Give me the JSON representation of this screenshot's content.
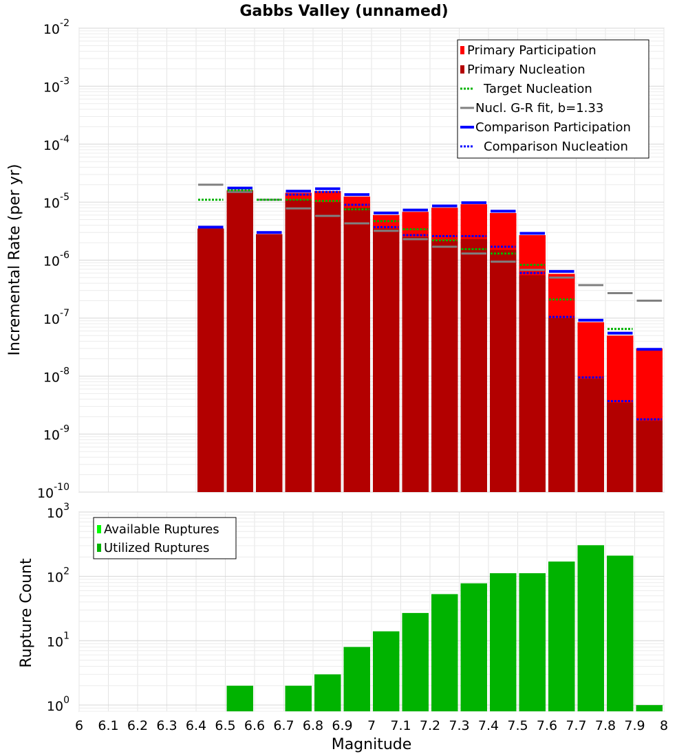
{
  "chart_data": [
    {
      "type": "bar",
      "title": "Gabbs Valley (unnamed)",
      "xlabel": "",
      "ylabel": "Incremental Rate (per yr)",
      "yscale": "log",
      "xlim": [
        6,
        8
      ],
      "ylim": [
        1e-10,
        0.01
      ],
      "y_ticks": [
        {
          "base": "10",
          "exp": "-10",
          "value": 1e-10
        },
        {
          "base": "10",
          "exp": "-9",
          "value": 1e-09
        },
        {
          "base": "10",
          "exp": "-8",
          "value": 1e-08
        },
        {
          "base": "10",
          "exp": "-7",
          "value": 1e-07
        },
        {
          "base": "10",
          "exp": "-6",
          "value": 1e-06
        },
        {
          "base": "10",
          "exp": "-5",
          "value": 1e-05
        },
        {
          "base": "10",
          "exp": "-4",
          "value": 0.0001
        },
        {
          "base": "10",
          "exp": "-3",
          "value": 0.001
        },
        {
          "base": "10",
          "exp": "-2",
          "value": 0.01
        }
      ],
      "legend": [
        {
          "label": "Primary Participation",
          "style": "square",
          "color": "#ff0000"
        },
        {
          "label": "Primary Nucleation",
          "style": "square",
          "color": "#b30000"
        },
        {
          "label": "Target Nucleation",
          "style": "dotted",
          "color": "#00b300"
        },
        {
          "label": "Nucl. G-R fit, b=1.33",
          "style": "solid",
          "color": "#808080"
        },
        {
          "label": "Comparison Participation",
          "style": "solid-thick",
          "color": "#0000ff"
        },
        {
          "label": "Comparison Nucleation",
          "style": "dotted",
          "color": "#0000ff"
        }
      ],
      "x": [
        6.45,
        6.55,
        6.65,
        6.75,
        6.85,
        6.95,
        7.05,
        7.15,
        7.25,
        7.35,
        7.45,
        7.55,
        7.65,
        7.75,
        7.85,
        7.95
      ],
      "series": [
        {
          "name": "Primary Participation",
          "color": "#ff0000",
          "values": [
            3.5e-06,
            1.6e-05,
            2.8e-06,
            1.45e-05,
            1.55e-05,
            1.25e-05,
            6e-06,
            6.8e-06,
            8e-06,
            9.2e-06,
            6.5e-06,
            2.7e-06,
            5.8e-07,
            8.5e-08,
            5e-08,
            3e-08
          ]
        },
        {
          "name": "Primary Nucleation",
          "color": "#b30000",
          "values": [
            3.5e-06,
            1.6e-05,
            2.8e-06,
            1.1e-05,
            1e-05,
            8e-06,
            3.5e-06,
            2.5e-06,
            2.2e-06,
            2.3e-06,
            1.5e-06,
            5.5e-07,
            1e-07,
            9e-09,
            3.5e-09,
            1.7e-09
          ]
        },
        {
          "name": "Target Nucleation",
          "color": "#00b300",
          "values": [
            1.1e-05,
            1.6e-05,
            1.1e-05,
            1.1e-05,
            1.05e-05,
            7.5e-06,
            4.7e-06,
            3.4e-06,
            2.2e-06,
            1.55e-06,
            1.3e-06,
            8.3e-07,
            2.1e-07,
            null,
            6.5e-08,
            null
          ]
        },
        {
          "name": "Nucl. G-R fit, b=1.33",
          "color": "#808080",
          "values": [
            2e-05,
            1.5e-05,
            1.1e-05,
            7.8e-06,
            5.8e-06,
            4.3e-06,
            3.2e-06,
            2.3e-06,
            1.7e-06,
            1.3e-06,
            9.4e-07,
            6.8e-07,
            5e-07,
            3.7e-07,
            2.7e-07,
            2e-07
          ]
        },
        {
          "name": "Comparison Participation",
          "color": "#0000ff",
          "values": [
            3.7e-06,
            1.75e-05,
            3e-06,
            1.55e-05,
            1.7e-05,
            1.35e-05,
            6.5e-06,
            7.3e-06,
            8.6e-06,
            9.8e-06,
            7e-06,
            2.9e-06,
            6.4e-07,
            9.2e-08,
            5.5e-08,
            2.9e-08
          ]
        },
        {
          "name": "Comparison Nucleation",
          "color": "#0000ff",
          "values": [
            3.7e-06,
            1.6e-05,
            3e-06,
            1.35e-05,
            1.5e-05,
            9e-06,
            3.7e-06,
            2.7e-06,
            2.6e-06,
            2.6e-06,
            1.7e-06,
            6e-07,
            1.05e-07,
            9.5e-09,
            3.7e-09,
            1.8e-09
          ]
        }
      ]
    },
    {
      "type": "bar",
      "title": "",
      "xlabel": "Magnitude",
      "ylabel": "Rupture Count",
      "yscale": "log",
      "xlim": [
        6,
        8
      ],
      "ylim": [
        0.8,
        1000
      ],
      "x_ticks": [
        "6",
        "6.1",
        "6.2",
        "6.3",
        "6.4",
        "6.5",
        "6.6",
        "6.7",
        "6.8",
        "6.9",
        "7",
        "7.1",
        "7.2",
        "7.3",
        "7.4",
        "7.5",
        "7.6",
        "7.7",
        "7.8",
        "7.9",
        "8"
      ],
      "y_ticks": [
        {
          "base": "10",
          "exp": "0",
          "value": 1
        },
        {
          "base": "10",
          "exp": "1",
          "value": 10
        },
        {
          "base": "10",
          "exp": "2",
          "value": 100
        },
        {
          "base": "10",
          "exp": "3",
          "value": 1000
        }
      ],
      "legend": [
        {
          "label": "Available Ruptures",
          "style": "square",
          "color": "#00ff00"
        },
        {
          "label": "Utilized Ruptures",
          "style": "square",
          "color": "#00b300"
        }
      ],
      "x": [
        6.45,
        6.55,
        6.65,
        6.75,
        6.85,
        6.95,
        7.05,
        7.15,
        7.25,
        7.35,
        7.45,
        7.55,
        7.65,
        7.75,
        7.85,
        7.95
      ],
      "series": [
        {
          "name": "Utilized Ruptures",
          "color": "#00b300",
          "values": [
            null,
            2,
            null,
            2,
            3,
            8,
            14,
            27,
            53,
            78,
            112,
            112,
            170,
            305,
            210,
            1
          ]
        }
      ]
    }
  ]
}
